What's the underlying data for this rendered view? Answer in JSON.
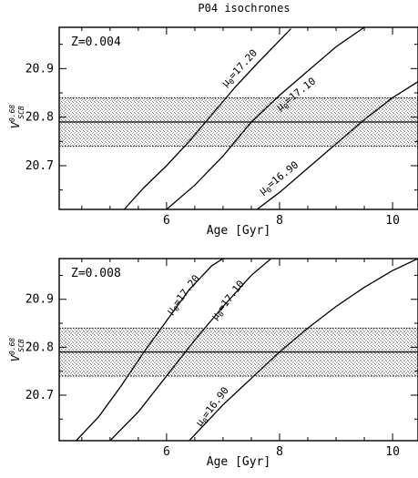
{
  "figure_title": "P04 isochrones",
  "chart_data": [
    {
      "type": "line",
      "panel_label": "Z=0.004",
      "xlabel": "Age [Gyr]",
      "ylabel": {
        "base": "V",
        "sup": "0.68",
        "sub": "SCB"
      },
      "xlim": [
        4.1,
        10.45
      ],
      "ylim": [
        20.61,
        20.985
      ],
      "xticks": [
        6,
        8,
        10
      ],
      "xtick_labels": [
        "6",
        "8",
        "10"
      ],
      "yticks": [
        20.7,
        20.8,
        20.9
      ],
      "ytick_labels": [
        "20.7",
        "20.8",
        "20.9"
      ],
      "band": {
        "center": 20.79,
        "lower": 20.74,
        "upper": 20.84
      },
      "series": [
        {
          "name": "μ0=17.20",
          "label_base": "μ",
          "label_sub": "0",
          "label_rest": "=17.20",
          "x": [
            5.25,
            5.6,
            6.0,
            6.4,
            6.8,
            7.2,
            7.6,
            8.0,
            8.2
          ],
          "y": [
            20.61,
            20.655,
            20.7,
            20.75,
            20.805,
            20.86,
            20.91,
            20.958,
            20.982
          ]
        },
        {
          "name": "μ0=17.10",
          "label_base": "μ",
          "label_sub": "0",
          "label_rest": "=17.10",
          "x": [
            6.0,
            6.5,
            7.0,
            7.5,
            8.0,
            8.5,
            9.0,
            9.5
          ],
          "y": [
            20.61,
            20.66,
            20.72,
            20.79,
            20.845,
            20.895,
            20.945,
            20.985
          ]
        },
        {
          "name": "μ0=16.90",
          "label_base": "μ",
          "label_sub": "0",
          "label_rest": "=16.90",
          "x": [
            7.6,
            8.0,
            8.5,
            9.0,
            9.5,
            10.0,
            10.45
          ],
          "y": [
            20.61,
            20.645,
            20.695,
            20.745,
            20.795,
            20.84,
            20.873
          ]
        }
      ]
    },
    {
      "type": "line",
      "panel_label": "Z=0.008",
      "xlabel": "Age [Gyr]",
      "ylabel": {
        "base": "V",
        "sup": "0.68",
        "sub": "SCB"
      },
      "xlim": [
        4.1,
        10.45
      ],
      "ylim": [
        20.605,
        20.985
      ],
      "xticks": [
        6,
        8,
        10
      ],
      "xtick_labels": [
        "6",
        "8",
        "10"
      ],
      "yticks": [
        20.7,
        20.8,
        20.9
      ],
      "ytick_labels": [
        "20.7",
        "20.8",
        "20.9"
      ],
      "band": {
        "center": 20.79,
        "lower": 20.74,
        "upper": 20.84
      },
      "series": [
        {
          "name": "μ0=17.20",
          "label_base": "μ",
          "label_sub": "0",
          "label_rest": "=17.20",
          "x": [
            4.4,
            4.8,
            5.2,
            5.6,
            6.0,
            6.4,
            6.8,
            7.0
          ],
          "y": [
            20.605,
            20.655,
            20.72,
            20.79,
            20.855,
            20.92,
            20.97,
            20.985
          ]
        },
        {
          "name": "μ0=17.10",
          "label_base": "μ",
          "label_sub": "0",
          "label_rest": "=17.10",
          "x": [
            5.0,
            5.5,
            6.0,
            6.5,
            7.0,
            7.5,
            7.85
          ],
          "y": [
            20.605,
            20.665,
            20.74,
            20.815,
            20.885,
            20.95,
            20.985
          ]
        },
        {
          "name": "μ0=16.90",
          "label_base": "μ",
          "label_sub": "0",
          "label_rest": "=16.90",
          "x": [
            6.4,
            7.0,
            7.5,
            8.0,
            8.5,
            9.0,
            9.5,
            10.0,
            10.45
          ],
          "y": [
            20.605,
            20.68,
            20.735,
            20.79,
            20.84,
            20.885,
            20.925,
            20.96,
            20.985
          ]
        }
      ]
    }
  ]
}
